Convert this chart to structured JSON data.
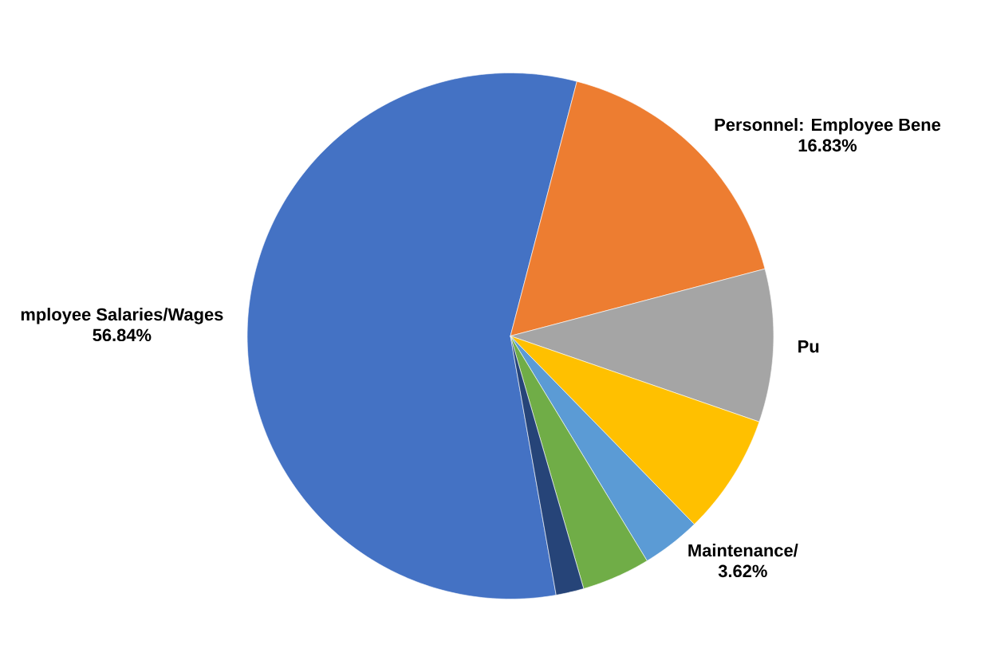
{
  "chart_data": {
    "type": "pie",
    "categories": [
      "mployee Salaries/Wages",
      "Personnel: Employee Bene",
      "Pu",
      null,
      "Maintenance/",
      null,
      null
    ],
    "values": [
      56.84,
      16.83,
      9.4,
      7.4,
      3.62,
      4.2,
      1.71
    ],
    "value_labels": [
      "56.84%",
      "16.83%",
      null,
      null,
      "3.62%",
      null,
      null
    ],
    "colors": [
      "#4472c4",
      "#ed7d31",
      "#a5a5a5",
      "#ffc000",
      "#5b9bd5",
      "#70ad47",
      "#264478"
    ]
  }
}
